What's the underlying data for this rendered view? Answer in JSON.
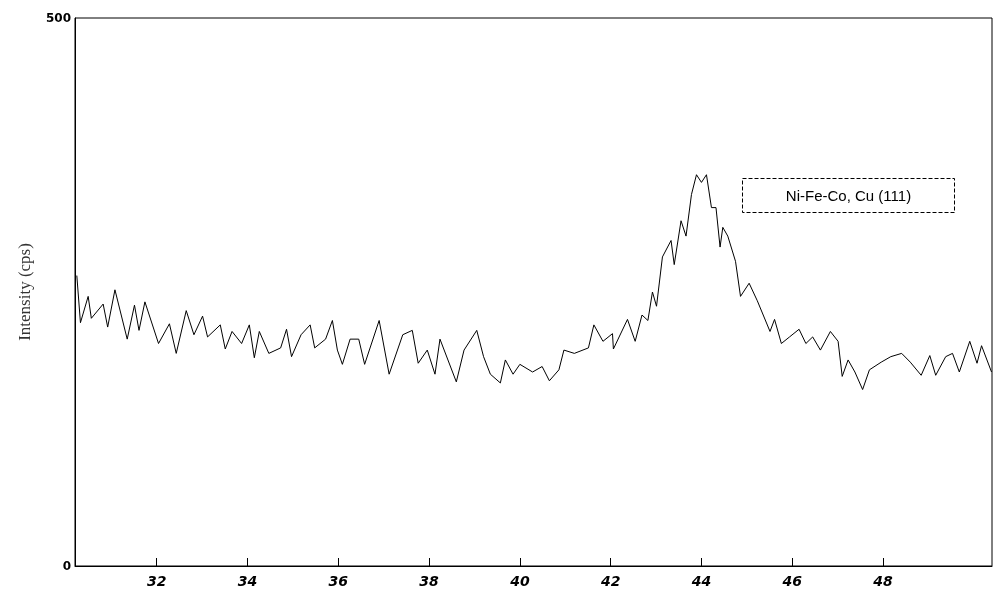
{
  "chart_data": {
    "type": "line",
    "ylabel": "Intensity (cps)",
    "annotations": [
      "Ni-Fe-Co, Cu (111)"
    ],
    "xlim": [
      30.2,
      50.4
    ],
    "xticks": [
      32,
      34,
      36,
      38,
      40,
      42,
      44,
      46,
      48
    ],
    "ylim": [
      0,
      500
    ],
    "yticks": [
      0,
      500
    ],
    "grid": false,
    "marker": "none",
    "line_style": "solid",
    "series": [
      {
        "color": "#000000",
        "x": [
          30.24,
          30.32,
          30.49,
          30.56,
          30.82,
          30.92,
          31.08,
          31.35,
          31.51,
          31.61,
          31.74,
          32.04,
          32.28,
          32.43,
          32.65,
          32.82,
          33.01,
          33.12,
          33.4,
          33.51,
          33.66,
          33.87,
          34.04,
          34.15,
          34.26,
          34.47,
          34.73,
          34.86,
          34.97,
          35.18,
          35.38,
          35.48,
          35.72,
          35.87,
          35.98,
          36.09,
          36.26,
          36.45,
          36.58,
          36.9,
          37.12,
          37.42,
          37.63,
          37.76,
          37.96,
          38.13,
          38.24,
          38.6,
          38.77,
          39.05,
          39.2,
          39.35,
          39.57,
          39.68,
          39.85,
          40.0,
          40.28,
          40.49,
          40.65,
          40.86,
          40.97,
          41.2,
          41.51,
          41.63,
          41.83,
          42.04,
          42.06,
          42.37,
          42.54,
          42.69,
          42.82,
          42.92,
          43.01,
          43.14,
          43.33,
          43.4,
          43.55,
          43.66,
          43.78,
          43.89,
          44.0,
          44.11,
          44.22,
          44.32,
          44.41,
          44.47,
          44.58,
          44.75,
          44.86,
          45.05,
          45.23,
          45.51,
          45.61,
          45.76,
          45.94,
          46.15,
          46.3,
          46.45,
          46.62,
          46.84,
          47.01,
          47.1,
          47.23,
          47.38,
          47.55,
          47.7,
          47.96,
          48.17,
          48.41,
          48.6,
          48.84,
          49.03,
          49.16,
          49.38,
          49.53,
          49.68,
          49.91,
          50.07,
          50.17,
          50.39
        ],
        "values": [
          265,
          222,
          246,
          226,
          239,
          218,
          252,
          207,
          238,
          215,
          241,
          203,
          221,
          194,
          233,
          211,
          228,
          209,
          220,
          198,
          214,
          203,
          220,
          190,
          214,
          194,
          199,
          216,
          191,
          211,
          220,
          199,
          207,
          224,
          197,
          184,
          207,
          207,
          184,
          224,
          175,
          211,
          215,
          185,
          197,
          175,
          207,
          168,
          197,
          215,
          191,
          175,
          167,
          188,
          175,
          184,
          177,
          182,
          169,
          179,
          197,
          194,
          199,
          220,
          205,
          212,
          198,
          225,
          205,
          229,
          224,
          250,
          237,
          282,
          297,
          275,
          315,
          301,
          339,
          357,
          350,
          357,
          327,
          327,
          291,
          309,
          301,
          278,
          246,
          258,
          242,
          214,
          225,
          203,
          209,
          216,
          203,
          209,
          197,
          214,
          205,
          173,
          188,
          177,
          161,
          179,
          186,
          191,
          194,
          186,
          174,
          192,
          174,
          191,
          194,
          177,
          205,
          185,
          201,
          177
        ]
      }
    ]
  }
}
